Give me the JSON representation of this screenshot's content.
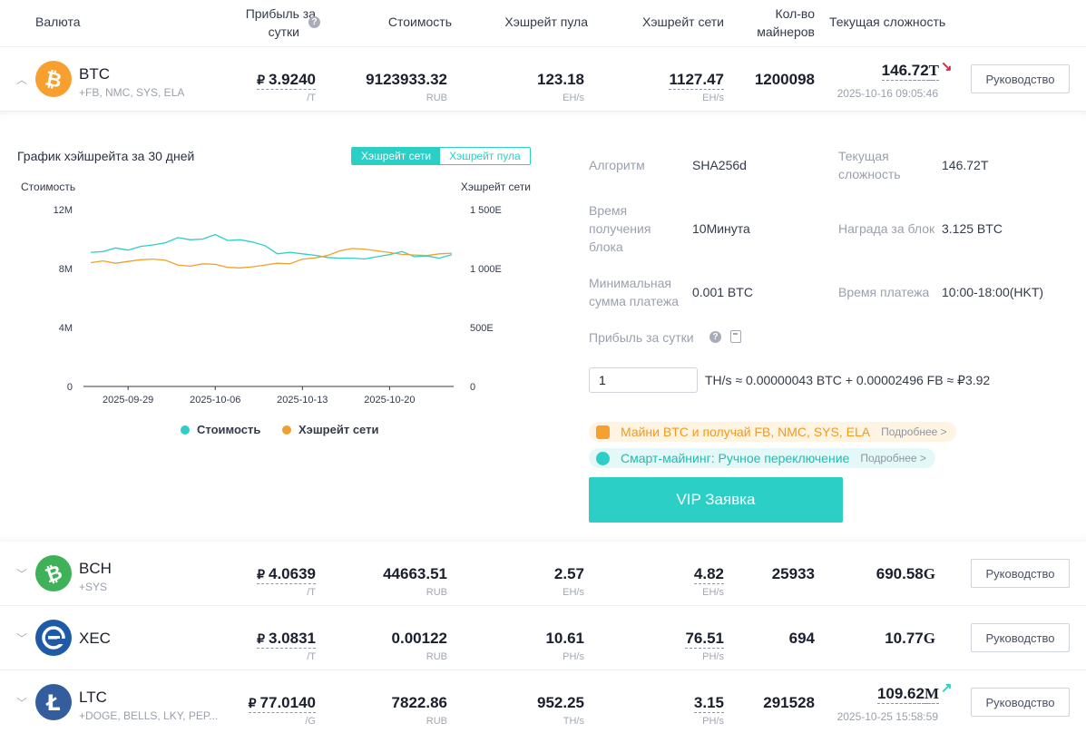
{
  "header": {
    "currency": "Валюта",
    "profit_line1": "Прибыль за",
    "profit_line2": "сутки",
    "value": "Стоимость",
    "pool_hashrate": "Хэшрейт пула",
    "network_hashrate": "Хэшрейт сети",
    "miners_line1": "Кол-во",
    "miners_line2": "майнеров",
    "difficulty": "Текущая сложность"
  },
  "colors": {
    "accent": "#2ccfc6",
    "orange": "#f0a030",
    "down_arrow": "#e0263a",
    "up_arrow": "#2ccfc6"
  },
  "rows": [
    {
      "name": "BTC",
      "sub": "+FB, NMC, SYS, ELA",
      "icon": "bitcoin-icon",
      "color": "#f7a030",
      "glyph": "₿",
      "profit": "3.9240",
      "profit_unit": "/T",
      "currency_sign": "₽",
      "value": "9123933.32",
      "value_unit": "RUB",
      "pool": "123.18",
      "pool_unit": "EH/s",
      "net": "1127.47",
      "net_unit": "EH/s",
      "miners": "1200098",
      "diff": "146.72",
      "diff_suffix": "T",
      "diff_trend": "↘",
      "diff_time": "2025-10-16 09:05:46",
      "guide": "Руководство",
      "expanded": true
    },
    {
      "name": "BCH",
      "sub": "+SYS",
      "icon": "bitcoin-cash-icon",
      "color": "#3fb159",
      "glyph": "₿",
      "profit": "4.0639",
      "profit_unit": "/T",
      "currency_sign": "₽",
      "value": "44663.51",
      "value_unit": "RUB",
      "pool": "2.57",
      "pool_unit": "EH/s",
      "net": "4.82",
      "net_unit": "EH/s",
      "miners": "25933",
      "diff": "690.58",
      "diff_suffix": "G",
      "guide": "Руководство"
    },
    {
      "name": "XEC",
      "sub": "",
      "icon": "ecash-icon",
      "color": "#1f5aa8",
      "glyph": "e",
      "profit": "3.0831",
      "profit_unit": "/T",
      "currency_sign": "₽",
      "value": "0.00122",
      "value_unit": "RUB",
      "pool": "10.61",
      "pool_unit": "PH/s",
      "net": "76.51",
      "net_unit": "PH/s",
      "miners": "694",
      "diff": "10.77",
      "diff_suffix": "G",
      "guide": "Руководство"
    },
    {
      "name": "LTC",
      "sub": "+DOGE, BELLS, LKY, PEP...",
      "icon": "litecoin-icon",
      "color": "#345d9d",
      "glyph": "Ł",
      "profit": "77.0140",
      "profit_unit": "/G",
      "currency_sign": "₽",
      "value": "7822.86",
      "value_unit": "RUB",
      "pool": "952.25",
      "pool_unit": "TH/s",
      "net": "3.15",
      "net_unit": "PH/s",
      "miners": "291528",
      "diff": "109.62",
      "diff_suffix": "M",
      "diff_trend": "↗",
      "diff_time": "2025-10-25 15:58:59",
      "guide": "Руководство"
    }
  ],
  "detail": {
    "chart_title": "График хэйшрейта за 30 дней",
    "tabs": [
      "Хэшрейт сети",
      "Хэшрейт пула"
    ],
    "labels": {
      "algorithm": "Алгоритм",
      "block_time_l1": "Время",
      "block_time_l2": "получения",
      "block_time_l3": "блока",
      "min_pay_l1": "Минимальная",
      "min_pay_l2": "сумма платежа",
      "cur_diff_l1": "Текущая",
      "cur_diff_l2": "сложность",
      "reward": "Награда за блок",
      "pay_time": "Время платежа",
      "daily_profit": "Прибыль за сутки"
    },
    "values": {
      "algorithm": "SHA256d",
      "block_time": "10Минута",
      "min_pay": "0.001 BTC",
      "cur_diff": "146.72T",
      "reward": "3.125 BTC",
      "pay_time": "10:00-18:00(HKT)"
    },
    "calc_input": "1",
    "calc_result": "TH/s ≈ 0.00000043 BTC + 0.00002496 FB ≈ ₽3.92",
    "promo1": "Майни BTC и получай FB, NMC, SYS, ELA",
    "promo2": "Смарт-майнинг: Ручное переключение",
    "more": "Подробнее >",
    "vip": "VIP Заявка"
  },
  "chart_data": {
    "type": "line",
    "ylabel": "Стоимость",
    "y2label": "Хэшрейт сети",
    "ylim": [
      0,
      12000000
    ],
    "y2lim": [
      0,
      1500
    ],
    "yticks": [
      "12M",
      "8M",
      "4M",
      "0"
    ],
    "y2ticks": [
      "1 500E",
      "1 000E",
      "500E",
      "0"
    ],
    "xticks": [
      "2025-09-29",
      "2025-10-06",
      "2025-10-13",
      "2025-10-20"
    ],
    "x": [
      "2025-09-26",
      "2025-09-27",
      "2025-09-28",
      "2025-09-29",
      "2025-09-30",
      "2025-10-01",
      "2025-10-02",
      "2025-10-03",
      "2025-10-04",
      "2025-10-05",
      "2025-10-06",
      "2025-10-07",
      "2025-10-08",
      "2025-10-09",
      "2025-10-10",
      "2025-10-11",
      "2025-10-12",
      "2025-10-13",
      "2025-10-14",
      "2025-10-15",
      "2025-10-16",
      "2025-10-17",
      "2025-10-18",
      "2025-10-19",
      "2025-10-20",
      "2025-10-21",
      "2025-10-22",
      "2025-10-23",
      "2025-10-24",
      "2025-10-25"
    ],
    "series": [
      {
        "name": "Стоимость",
        "color": "#2ccfc6",
        "axis": "left",
        "values": [
          9100000,
          9150000,
          9400000,
          9250000,
          9500000,
          9600000,
          9750000,
          10100000,
          9950000,
          10000000,
          10300000,
          9900000,
          9950000,
          9800000,
          9550000,
          9000000,
          9100000,
          9000000,
          8900000,
          8750000,
          8700000,
          8700000,
          8650000,
          8800000,
          8950000,
          9150000,
          8800000,
          8850000,
          8700000,
          8950000
        ]
      },
      {
        "name": "Хэшрейт сети",
        "color": "#f0a030",
        "axis": "right",
        "values": [
          1050,
          1065,
          1045,
          1060,
          1075,
          1080,
          1070,
          1030,
          1020,
          1040,
          1035,
          1010,
          1005,
          1015,
          1030,
          1045,
          1040,
          1080,
          1090,
          1110,
          1150,
          1170,
          1165,
          1150,
          1135,
          1120,
          1115,
          1110,
          1125,
          1130
        ]
      }
    ],
    "legend": "bottom"
  }
}
